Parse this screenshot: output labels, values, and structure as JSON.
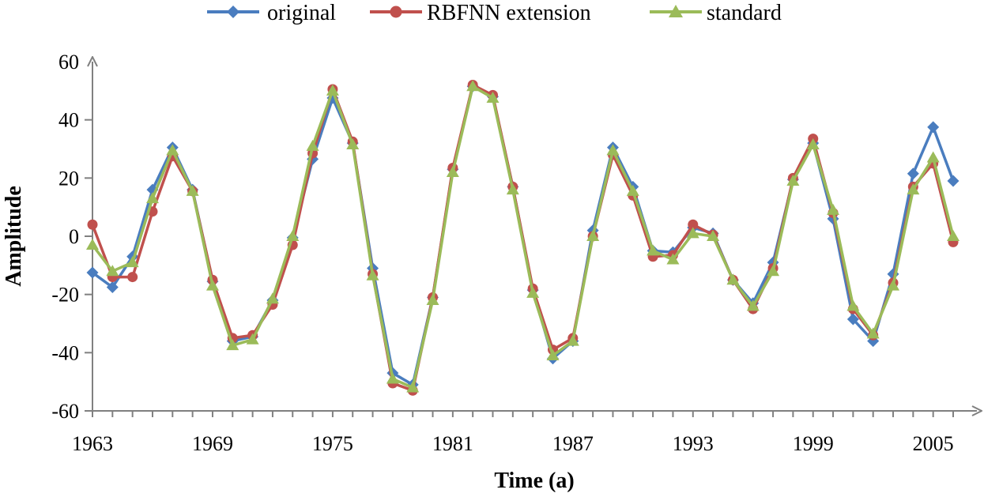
{
  "chart_data": {
    "type": "line",
    "title": "",
    "xlabel": "Time (a)",
    "ylabel": "Amplitude",
    "xlim": [
      1963,
      2006
    ],
    "ylim": [
      -60,
      60
    ],
    "x_tick_labels": [
      "1963",
      "1969",
      "1975",
      "1981",
      "1987",
      "1993",
      "1999",
      "2005"
    ],
    "y_tick_labels": [
      "60",
      "40",
      "20",
      "0",
      "-20",
      "-40",
      "-60"
    ],
    "grid": false,
    "legend_position": "top",
    "x": [
      1963,
      1964,
      1965,
      1966,
      1967,
      1968,
      1969,
      1970,
      1971,
      1972,
      1973,
      1974,
      1975,
      1976,
      1977,
      1978,
      1979,
      1980,
      1981,
      1982,
      1983,
      1984,
      1985,
      1986,
      1987,
      1988,
      1989,
      1990,
      1991,
      1992,
      1993,
      1994,
      1995,
      1996,
      1997,
      1998,
      1999,
      2000,
      2001,
      2002,
      2003,
      2004,
      2005,
      2006
    ],
    "series": [
      {
        "name": "original",
        "color": "#4a7dbf",
        "marker": "diamond",
        "values": [
          -12.5,
          -17.5,
          -7,
          16,
          30.5,
          16,
          -15.5,
          -36,
          -34.5,
          -22,
          -0.5,
          26.5,
          47.5,
          32,
          -11,
          -47,
          -51,
          -21,
          23,
          51.5,
          48,
          17,
          -18.5,
          -42,
          -36,
          2,
          30.5,
          17,
          -5,
          -5.5,
          3,
          1,
          -15,
          -23,
          -9,
          19.5,
          32,
          6,
          -28.5,
          -36,
          -13,
          21.5,
          37.5,
          19
        ]
      },
      {
        "name": "RBFNN extension",
        "color": "#c0504d",
        "marker": "circle",
        "values": [
          4,
          -14,
          -14,
          8.5,
          27.5,
          15.5,
          -15,
          -35,
          -34,
          -23.5,
          -3,
          28.5,
          50.5,
          32.5,
          -13,
          -50.5,
          -53,
          -21,
          23.5,
          52,
          48.5,
          17,
          -18,
          -39,
          -35,
          0,
          28,
          14,
          -7,
          -6.5,
          4,
          0.5,
          -15,
          -25,
          -11,
          20,
          33.5,
          8,
          -25,
          -34,
          -16,
          17,
          25,
          -2
        ]
      },
      {
        "name": "standard",
        "color": "#9bbb59",
        "marker": "triangle",
        "values": [
          -3,
          -12,
          -9,
          13,
          29.5,
          15.5,
          -17,
          -37.5,
          -35.5,
          -21.5,
          0,
          31,
          50,
          31.5,
          -13.5,
          -49,
          -52,
          -22,
          22,
          51.5,
          47.5,
          16,
          -19.5,
          -41,
          -36,
          0,
          29.5,
          15.5,
          -5,
          -8,
          1,
          0,
          -15,
          -24,
          -12,
          19,
          31.5,
          9,
          -24,
          -33.5,
          -17,
          16,
          27,
          0
        ]
      }
    ]
  }
}
